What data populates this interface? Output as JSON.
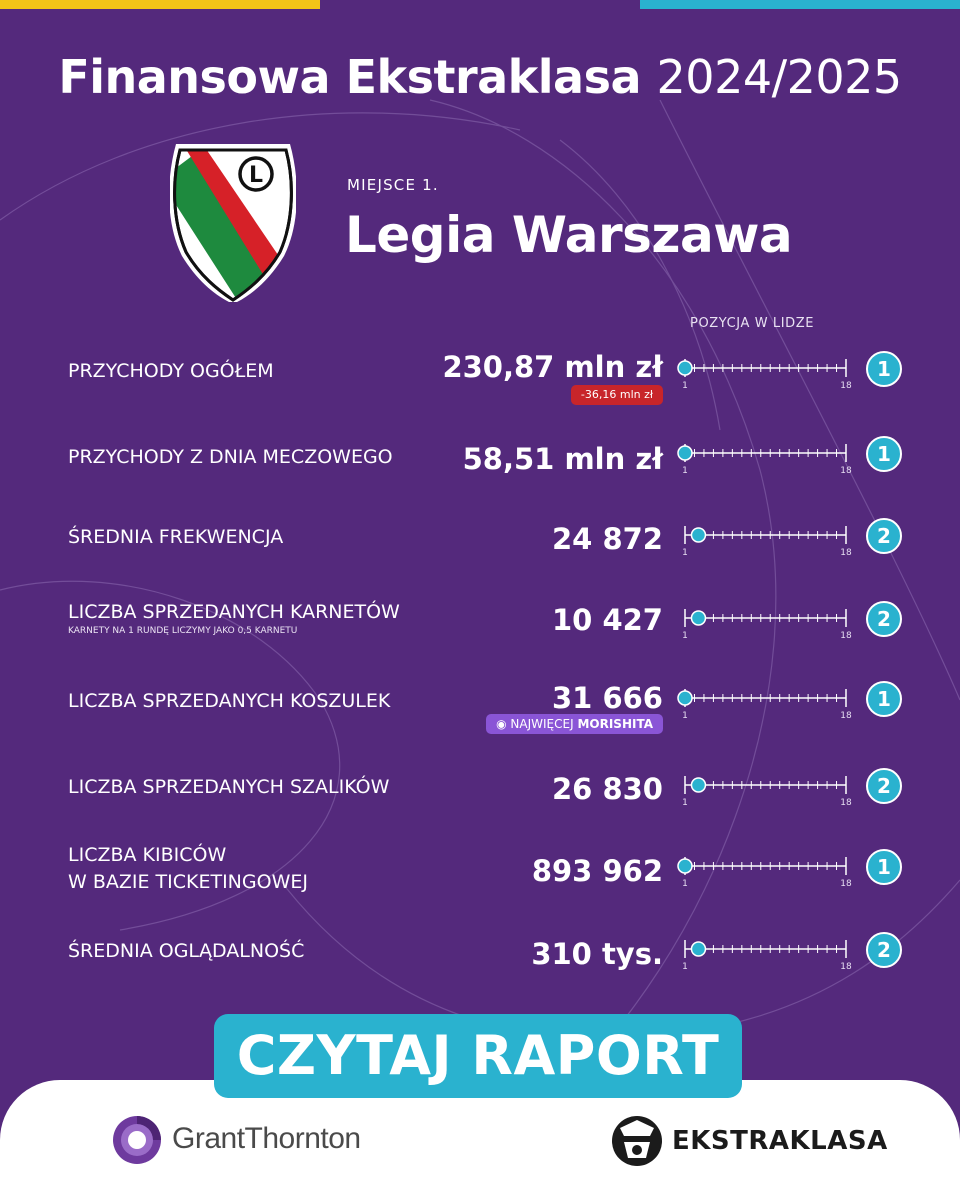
{
  "header": {
    "title": "Finansowa Ekstraklasa",
    "season": "2024/2025"
  },
  "club": {
    "place_label": "MIEJSCE 1.",
    "name": "Legia Warszawa",
    "crest_letter": "L"
  },
  "table": {
    "position_header": "POZYCJA W LIDZE",
    "scale_min": "1",
    "scale_max": "18",
    "rows": [
      {
        "label": "PRZYCHODY OGÓŁEM",
        "value": "230,87 mln zł",
        "rank": "1",
        "rank_fraction": 0.0,
        "change": "-36,16 mln zł"
      },
      {
        "label": "PRZYCHODY Z DNIA MECZOWEGO",
        "value": "58,51 mln zł",
        "rank": "1",
        "rank_fraction": 0.0
      },
      {
        "label": "ŚREDNIA FREKWENCJA",
        "value": "24 872",
        "rank": "2",
        "rank_fraction": 0.0588
      },
      {
        "label": "LICZBA SPRZEDANYCH KARNETÓW",
        "note": "KARNETY NA 1 RUNDĘ LICZYMY JAKO 0,5 KARNETU",
        "value": "10 427",
        "rank": "2",
        "rank_fraction": 0.0588
      },
      {
        "label": "LICZBA SPRZEDANYCH KOSZULEK",
        "value": "31 666",
        "rank": "1",
        "rank_fraction": 0.0,
        "badge_prefix": "NAJWIĘCEJ",
        "badge_name": "MORISHITA"
      },
      {
        "label": "LICZBA SPRZEDANYCH SZALIKÓW",
        "value": "26 830",
        "rank": "2",
        "rank_fraction": 0.0588
      },
      {
        "label": "LICZBA KIBICÓW",
        "label2": "W BAZIE TICKETINGOWEJ",
        "value": "893 962",
        "rank": "1",
        "rank_fraction": 0.0
      },
      {
        "label": "ŚREDNIA OGLĄDALNOŚĆ",
        "value": "310 tys.",
        "rank": "2",
        "rank_fraction": 0.0588
      }
    ]
  },
  "cta": {
    "label": "CZYTAJ RAPORT"
  },
  "footer": {
    "partner": "GrantThornton",
    "league": "EKSTRAKLASA"
  },
  "colors": {
    "background": "#54297c",
    "accent_teal": "#2ab2cf",
    "accent_yellow": "#f3c317",
    "negative_red": "#c8252a",
    "badge_purple": "#8a55d6"
  }
}
